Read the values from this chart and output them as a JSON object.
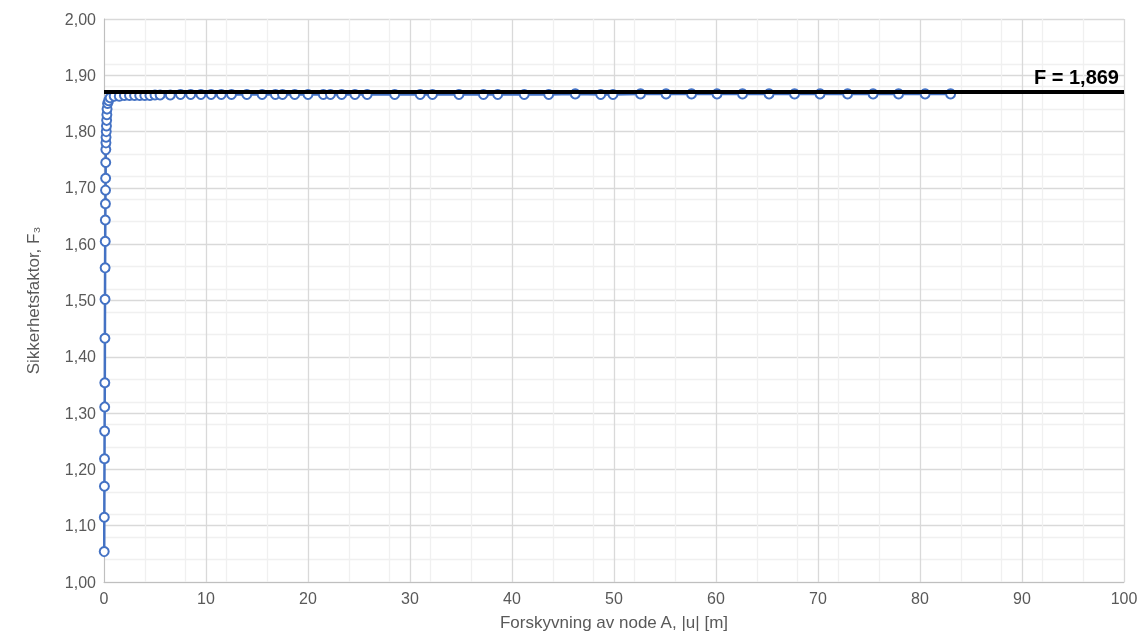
{
  "chart_data": {
    "type": "line",
    "xlabel": "Forskyvning av node A, |u| [m]",
    "ylabel": "Sikkerhetsfaktor, F₃",
    "x": [
      0.02,
      0.03,
      0.04,
      0.05,
      0.06,
      0.07,
      0.08,
      0.09,
      0.1,
      0.11,
      0.12,
      0.13,
      0.14,
      0.15,
      0.16,
      0.17,
      0.18,
      0.19,
      0.2,
      0.22,
      0.24,
      0.26,
      0.28,
      0.3,
      0.35,
      0.45,
      0.6,
      1,
      1.5,
      2,
      2.5,
      3,
      3.5,
      4,
      4.5,
      5,
      5.5,
      6.5,
      7.5,
      8.5,
      9.5,
      10.5,
      11.5,
      12.5,
      14,
      15.5,
      16.8,
      17.5,
      18.7,
      20,
      21.5,
      22.2,
      23.3,
      24.6,
      25.8,
      28.5,
      31,
      32.2,
      34.8,
      37.2,
      38.6,
      41.2,
      43.6,
      46.2,
      48.7,
      49.9,
      52.6,
      55.1,
      57.6,
      60.1,
      62.6,
      65.2,
      67.7,
      70.2,
      72.9,
      75.4,
      77.9,
      80.5,
      83
    ],
    "series": [
      {
        "color": "#4472c4",
        "values": [
          1.054,
          1.115,
          1.17,
          1.219,
          1.268,
          1.311,
          1.354,
          1.433,
          1.502,
          1.558,
          1.605,
          1.643,
          1.672,
          1.696,
          1.717,
          1.745,
          1.768,
          1.78,
          1.79,
          1.8,
          1.81,
          1.82,
          1.83,
          1.84,
          1.85,
          1.855,
          1.86,
          1.863,
          1.863,
          1.864,
          1.864,
          1.864,
          1.864,
          1.864,
          1.864,
          1.865,
          1.865,
          1.865,
          1.866,
          1.866,
          1.866,
          1.866,
          1.866,
          1.866,
          1.866,
          1.866,
          1.866,
          1.866,
          1.866,
          1.866,
          1.866,
          1.866,
          1.866,
          1.866,
          1.866,
          1.866,
          1.866,
          1.866,
          1.866,
          1.866,
          1.866,
          1.866,
          1.866,
          1.867,
          1.866,
          1.866,
          1.867,
          1.867,
          1.867,
          1.867,
          1.867,
          1.867,
          1.867,
          1.867,
          1.867,
          1.867,
          1.867,
          1.867,
          1.867
        ]
      }
    ],
    "xlim": [
      0,
      100
    ],
    "xticks": [
      0,
      10,
      20,
      30,
      40,
      50,
      60,
      70,
      80,
      90,
      100
    ],
    "ylim": [
      1,
      2
    ],
    "yticks": [
      {
        "value": 1,
        "label": "1,00"
      },
      {
        "value": 1.1,
        "label": "1,10"
      },
      {
        "value": 1.2,
        "label": "1,20"
      },
      {
        "value": 1.3,
        "label": "1,30"
      },
      {
        "value": 1.4,
        "label": "1,40"
      },
      {
        "value": 1.5,
        "label": "1,50"
      },
      {
        "value": 1.6,
        "label": "1,60"
      },
      {
        "value": 1.7,
        "label": "1,70"
      },
      {
        "value": 1.8,
        "label": "1,80"
      },
      {
        "value": 1.9,
        "label": "1,90"
      },
      {
        "value": 2,
        "label": "2,00"
      }
    ],
    "ref_lines": [
      {
        "axis": "y",
        "value": 1.869,
        "label": "F = 1,869",
        "color": "#000000"
      }
    ],
    "grid": true,
    "marker": "circle",
    "line_style": "solid"
  }
}
